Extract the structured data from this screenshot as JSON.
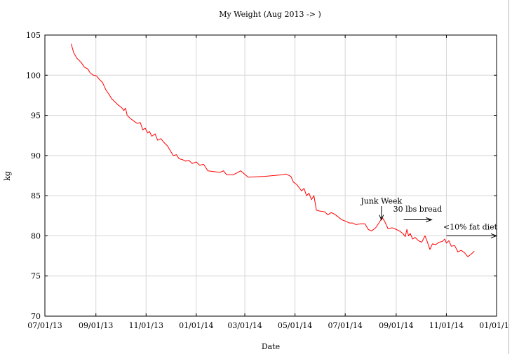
{
  "chart_data": {
    "type": "line",
    "title": "My Weight (Aug 2013 -> )",
    "xlabel": "Date",
    "ylabel": "kg",
    "x_type": "date",
    "xlim": [
      "2013-07-01",
      "2015-01-01"
    ],
    "ylim": [
      70,
      105
    ],
    "grid": true,
    "x_ticks": [
      {
        "value": "2013-07-01",
        "label": "07/01/13"
      },
      {
        "value": "2013-09-01",
        "label": "09/01/13"
      },
      {
        "value": "2013-11-01",
        "label": "11/01/13"
      },
      {
        "value": "2014-01-01",
        "label": "01/01/14"
      },
      {
        "value": "2014-03-01",
        "label": "03/01/14"
      },
      {
        "value": "2014-05-01",
        "label": "05/01/14"
      },
      {
        "value": "2014-07-01",
        "label": "07/01/14"
      },
      {
        "value": "2014-09-01",
        "label": "09/01/14"
      },
      {
        "value": "2014-11-01",
        "label": "11/01/14"
      },
      {
        "value": "2015-01-01",
        "label": "01/01/15"
      }
    ],
    "y_ticks": [
      {
        "value": 70,
        "label": "70"
      },
      {
        "value": 75,
        "label": "75"
      },
      {
        "value": 80,
        "label": "80"
      },
      {
        "value": 85,
        "label": "85"
      },
      {
        "value": 90,
        "label": "90"
      },
      {
        "value": 95,
        "label": "95"
      },
      {
        "value": 100,
        "label": "100"
      },
      {
        "value": 105,
        "label": "105"
      }
    ],
    "series": [
      {
        "color": "#ff0000",
        "points": [
          [
            "2013-08-02",
            103.9
          ],
          [
            "2013-08-05",
            102.8
          ],
          [
            "2013-08-09",
            102.1
          ],
          [
            "2013-08-14",
            101.6
          ],
          [
            "2013-08-18",
            101.0
          ],
          [
            "2013-08-22",
            100.8
          ],
          [
            "2013-08-25",
            100.3
          ],
          [
            "2013-08-29",
            100.0
          ],
          [
            "2013-09-02",
            99.9
          ],
          [
            "2013-09-05",
            99.5
          ],
          [
            "2013-09-09",
            99.1
          ],
          [
            "2013-09-13",
            98.2
          ],
          [
            "2013-09-17",
            97.6
          ],
          [
            "2013-09-20",
            97.1
          ],
          [
            "2013-09-24",
            96.7
          ],
          [
            "2013-09-28",
            96.3
          ],
          [
            "2013-10-02",
            96.0
          ],
          [
            "2013-10-05",
            95.6
          ],
          [
            "2013-10-07",
            95.9
          ],
          [
            "2013-10-09",
            95.0
          ],
          [
            "2013-10-13",
            94.6
          ],
          [
            "2013-10-17",
            94.3
          ],
          [
            "2013-10-21",
            94.0
          ],
          [
            "2013-10-25",
            94.1
          ],
          [
            "2013-10-28",
            93.2
          ],
          [
            "2013-10-31",
            93.4
          ],
          [
            "2013-11-03",
            92.8
          ],
          [
            "2013-11-05",
            93.0
          ],
          [
            "2013-11-08",
            92.4
          ],
          [
            "2013-11-12",
            92.7
          ],
          [
            "2013-11-15",
            91.9
          ],
          [
            "2013-11-19",
            92.1
          ],
          [
            "2013-11-23",
            91.6
          ],
          [
            "2013-11-27",
            91.2
          ],
          [
            "2013-12-01",
            90.5
          ],
          [
            "2013-12-04",
            90.0
          ],
          [
            "2013-12-08",
            90.1
          ],
          [
            "2013-12-11",
            89.6
          ],
          [
            "2013-12-15",
            89.5
          ],
          [
            "2013-12-19",
            89.3
          ],
          [
            "2013-12-23",
            89.4
          ],
          [
            "2013-12-27",
            89.0
          ],
          [
            "2014-01-01",
            89.2
          ],
          [
            "2014-01-05",
            88.8
          ],
          [
            "2014-01-10",
            88.9
          ],
          [
            "2014-01-15",
            88.1
          ],
          [
            "2014-01-22",
            88.0
          ],
          [
            "2014-01-30",
            87.9
          ],
          [
            "2014-02-03",
            88.1
          ],
          [
            "2014-02-07",
            87.6
          ],
          [
            "2014-02-15",
            87.6
          ],
          [
            "2014-02-24",
            88.1
          ],
          [
            "2014-03-05",
            87.3
          ],
          [
            "2014-03-25",
            87.4
          ],
          [
            "2014-04-15",
            87.6
          ],
          [
            "2014-04-20",
            87.7
          ],
          [
            "2014-04-26",
            87.4
          ],
          [
            "2014-04-29",
            86.7
          ],
          [
            "2014-05-03",
            86.4
          ],
          [
            "2014-05-06",
            86.0
          ],
          [
            "2014-05-09",
            85.6
          ],
          [
            "2014-05-12",
            85.9
          ],
          [
            "2014-05-15",
            85.0
          ],
          [
            "2014-05-18",
            85.3
          ],
          [
            "2014-05-21",
            84.5
          ],
          [
            "2014-05-24",
            85.0
          ],
          [
            "2014-05-27",
            83.2
          ],
          [
            "2014-05-30",
            83.1
          ],
          [
            "2014-06-06",
            83.0
          ],
          [
            "2014-06-10",
            82.6
          ],
          [
            "2014-06-14",
            82.9
          ],
          [
            "2014-06-18",
            82.7
          ],
          [
            "2014-06-22",
            82.4
          ],
          [
            "2014-06-27",
            82.0
          ],
          [
            "2014-07-02",
            81.8
          ],
          [
            "2014-07-06",
            81.6
          ],
          [
            "2014-07-10",
            81.6
          ],
          [
            "2014-07-14",
            81.4
          ],
          [
            "2014-07-20",
            81.5
          ],
          [
            "2014-07-25",
            81.5
          ],
          [
            "2014-07-29",
            80.8
          ],
          [
            "2014-08-02",
            80.6
          ],
          [
            "2014-08-07",
            81.0
          ],
          [
            "2014-08-11",
            81.6
          ],
          [
            "2014-08-15",
            82.3
          ],
          [
            "2014-08-18",
            81.8
          ],
          [
            "2014-08-22",
            80.9
          ],
          [
            "2014-08-27",
            81.0
          ],
          [
            "2014-09-01",
            80.8
          ],
          [
            "2014-09-05",
            80.6
          ],
          [
            "2014-09-09",
            80.3
          ],
          [
            "2014-09-12",
            79.9
          ],
          [
            "2014-09-14",
            80.8
          ],
          [
            "2014-09-16",
            80.0
          ],
          [
            "2014-09-18",
            80.3
          ],
          [
            "2014-09-21",
            79.6
          ],
          [
            "2014-09-24",
            79.8
          ],
          [
            "2014-09-28",
            79.4
          ],
          [
            "2014-10-02",
            79.2
          ],
          [
            "2014-10-06",
            80.0
          ],
          [
            "2014-10-09",
            79.2
          ],
          [
            "2014-10-12",
            78.3
          ],
          [
            "2014-10-15",
            79.0
          ],
          [
            "2014-10-19",
            78.9
          ],
          [
            "2014-10-23",
            79.2
          ],
          [
            "2014-10-27",
            79.3
          ],
          [
            "2014-10-30",
            79.6
          ],
          [
            "2014-11-01",
            79.1
          ],
          [
            "2014-11-04",
            79.4
          ],
          [
            "2014-11-07",
            78.7
          ],
          [
            "2014-11-11",
            78.8
          ],
          [
            "2014-11-15",
            78.0
          ],
          [
            "2014-11-19",
            78.2
          ],
          [
            "2014-11-23",
            77.9
          ],
          [
            "2014-11-27",
            77.4
          ],
          [
            "2014-12-01",
            77.7
          ],
          [
            "2014-12-05",
            78.1
          ]
        ]
      }
    ],
    "annotations": [
      {
        "text": "Junk Week",
        "type": "arrow-down",
        "x": "2014-08-14",
        "y_from": 83.7,
        "y_to": 82.0,
        "text_y": 84.0
      },
      {
        "text": "30 lbs bread",
        "type": "arrow-right",
        "x_from": "2014-09-10",
        "x_to": "2014-10-14",
        "y": 82.0,
        "text_x": "2014-09-27",
        "text_y": 83.0
      },
      {
        "text": "<10% fat diet",
        "type": "arrow-right",
        "x_from": "2014-11-01",
        "x_to": "2015-01-01",
        "y": 80.0,
        "text_x": "2014-11-30",
        "text_y": 80.8
      }
    ]
  }
}
